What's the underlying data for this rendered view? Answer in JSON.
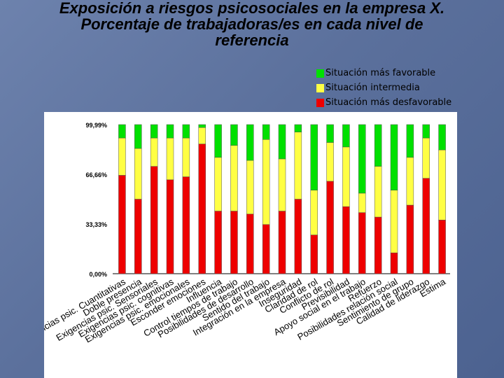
{
  "title": {
    "line1": "Exposición a riesgos psicosociales en la empresa X.",
    "line2": "Porcentaje de trabajadoras/es en cada nivel de",
    "line3": "referencia"
  },
  "legend": [
    {
      "label": "Situación más favorable",
      "color": "#00e000"
    },
    {
      "label": "Situación intermedia",
      "color": "#ffff44"
    },
    {
      "label": "Situación más desfavorable",
      "color": "#ee0000"
    }
  ],
  "chart_data": {
    "type": "bar",
    "stacked": true,
    "ylim": [
      0,
      99.99
    ],
    "yticks": [
      "0,00%",
      "33,33%",
      "66,66%",
      "99,99%"
    ],
    "categories": [
      "Exigencias psic. Cuantitativas",
      "Doble presencia",
      "Exigencias psic. Sensoriales",
      "Exigencias psic. cognitivas",
      "Exigencias psic. emocionales",
      "Esconder emociones",
      "Influencia",
      "Control tiempos de trabajo",
      "Posibilidades de desarrollo",
      "Sentido del trabajo",
      "Integración en la empresa",
      "Inseguridad",
      "Claridad de rol",
      "Conflicto de rol",
      "Previsibilidad",
      "Apoyo social en el trabajo",
      "Refuerzo",
      "Posibilidades relación social",
      "Sentimiento de grupo",
      "Calidad de liderazgo",
      "Estima"
    ],
    "series": [
      {
        "name": "Situación más desfavorable",
        "color": "#ee0000",
        "values": [
          66,
          50,
          72,
          63,
          65,
          87,
          42,
          42,
          40,
          33,
          42,
          50,
          26,
          62,
          45,
          41,
          38,
          14,
          46,
          64,
          36
        ]
      },
      {
        "name": "Situación intermedia",
        "color": "#ffff44",
        "values": [
          25,
          34,
          19,
          28,
          26,
          11,
          36,
          44,
          36,
          57,
          35,
          45,
          30,
          26,
          40,
          13,
          34,
          42,
          32,
          27,
          47
        ]
      },
      {
        "name": "Situación más favorable",
        "color": "#00e000",
        "values": [
          9,
          16,
          9,
          9,
          9,
          2,
          22,
          14,
          24,
          10,
          23,
          5,
          44,
          12,
          15,
          46,
          28,
          44,
          22,
          9,
          17
        ]
      }
    ]
  }
}
